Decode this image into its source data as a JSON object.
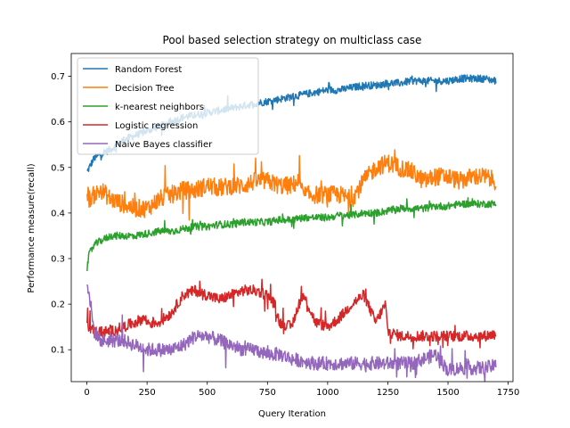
{
  "chart_data": {
    "type": "line",
    "title": "Pool based selection strategy on multiclass case",
    "xlabel": "Query Iteration",
    "ylabel": "Performance measure(recall)",
    "xlim": [
      -65,
      1770
    ],
    "ylim": [
      0.03,
      0.75
    ],
    "xticks": [
      0,
      250,
      500,
      750,
      1000,
      1250,
      1500,
      1750
    ],
    "yticks": [
      0.1,
      0.2,
      0.3,
      0.4,
      0.5,
      0.6,
      0.7
    ],
    "grid": false,
    "legend_position": "top-left",
    "x_range": [
      1,
      1700
    ],
    "series": [
      {
        "name": "Random Forest",
        "color": "#1f77b4",
        "noise": 0.008,
        "x": [
          1,
          10,
          30,
          60,
          100,
          150,
          200,
          250,
          300,
          350,
          400,
          450,
          500,
          550,
          600,
          650,
          700,
          750,
          800,
          850,
          900,
          950,
          1000,
          1050,
          1100,
          1150,
          1200,
          1250,
          1300,
          1350,
          1400,
          1450,
          1500,
          1550,
          1600,
          1650,
          1700
        ],
        "y": [
          0.49,
          0.5,
          0.52,
          0.53,
          0.54,
          0.56,
          0.57,
          0.58,
          0.59,
          0.6,
          0.61,
          0.615,
          0.62,
          0.625,
          0.63,
          0.635,
          0.64,
          0.645,
          0.65,
          0.655,
          0.66,
          0.665,
          0.67,
          0.67,
          0.675,
          0.68,
          0.68,
          0.685,
          0.685,
          0.69,
          0.69,
          0.69,
          0.69,
          0.695,
          0.695,
          0.695,
          0.69
        ]
      },
      {
        "name": "Decision Tree",
        "color": "#ff7f0e",
        "noise": 0.02,
        "x": [
          1,
          10,
          30,
          60,
          100,
          150,
          200,
          250,
          300,
          350,
          400,
          450,
          500,
          550,
          600,
          650,
          700,
          750,
          800,
          850,
          880,
          900,
          950,
          1000,
          1050,
          1100,
          1150,
          1200,
          1250,
          1300,
          1350,
          1400,
          1450,
          1500,
          1550,
          1600,
          1650,
          1700
        ],
        "y": [
          0.45,
          0.43,
          0.44,
          0.45,
          0.43,
          0.42,
          0.41,
          0.41,
          0.43,
          0.44,
          0.45,
          0.45,
          0.46,
          0.455,
          0.46,
          0.46,
          0.47,
          0.47,
          0.46,
          0.46,
          0.47,
          0.44,
          0.44,
          0.44,
          0.44,
          0.43,
          0.47,
          0.5,
          0.51,
          0.5,
          0.49,
          0.47,
          0.48,
          0.48,
          0.47,
          0.48,
          0.48,
          0.47
        ]
      },
      {
        "name": "k-nearest neighbors",
        "color": "#2ca02c",
        "noise": 0.008,
        "x": [
          1,
          10,
          30,
          60,
          100,
          150,
          200,
          250,
          300,
          350,
          400,
          450,
          500,
          550,
          600,
          650,
          700,
          750,
          800,
          850,
          900,
          950,
          1000,
          1050,
          1100,
          1150,
          1200,
          1250,
          1300,
          1350,
          1400,
          1450,
          1500,
          1550,
          1600,
          1650,
          1700
        ],
        "y": [
          0.28,
          0.31,
          0.33,
          0.34,
          0.35,
          0.35,
          0.35,
          0.355,
          0.36,
          0.36,
          0.365,
          0.37,
          0.37,
          0.375,
          0.375,
          0.38,
          0.38,
          0.38,
          0.385,
          0.385,
          0.39,
          0.39,
          0.39,
          0.395,
          0.395,
          0.4,
          0.4,
          0.405,
          0.41,
          0.41,
          0.41,
          0.415,
          0.415,
          0.42,
          0.42,
          0.42,
          0.42
        ]
      },
      {
        "name": "Logistic regression",
        "color": "#d62728",
        "noise": 0.012,
        "x": [
          1,
          10,
          30,
          60,
          100,
          150,
          200,
          240,
          250,
          300,
          350,
          400,
          450,
          500,
          550,
          600,
          650,
          700,
          750,
          780,
          800,
          850,
          880,
          900,
          950,
          1000,
          1050,
          1100,
          1150,
          1200,
          1240,
          1250,
          1300,
          1350,
          1400,
          1450,
          1500,
          1550,
          1600,
          1650,
          1700
        ],
        "y": [
          0.15,
          0.15,
          0.14,
          0.14,
          0.14,
          0.15,
          0.16,
          0.17,
          0.16,
          0.16,
          0.18,
          0.22,
          0.23,
          0.22,
          0.21,
          0.22,
          0.23,
          0.23,
          0.22,
          0.2,
          0.16,
          0.15,
          0.2,
          0.22,
          0.16,
          0.15,
          0.17,
          0.2,
          0.22,
          0.16,
          0.2,
          0.14,
          0.13,
          0.13,
          0.13,
          0.13,
          0.13,
          0.13,
          0.13,
          0.13,
          0.135
        ]
      },
      {
        "name": "Naive Bayes classifier",
        "color": "#9467bd",
        "noise": 0.015,
        "x": [
          1,
          10,
          30,
          60,
          100,
          150,
          200,
          250,
          300,
          350,
          400,
          450,
          500,
          550,
          600,
          650,
          700,
          750,
          800,
          850,
          900,
          950,
          1000,
          1050,
          1100,
          1150,
          1200,
          1250,
          1300,
          1350,
          1400,
          1450,
          1500,
          1550,
          1600,
          1650,
          1700
        ],
        "y": [
          0.25,
          0.22,
          0.14,
          0.12,
          0.12,
          0.12,
          0.11,
          0.1,
          0.1,
          0.1,
          0.11,
          0.13,
          0.13,
          0.12,
          0.11,
          0.1,
          0.1,
          0.09,
          0.09,
          0.08,
          0.075,
          0.07,
          0.07,
          0.07,
          0.07,
          0.07,
          0.07,
          0.07,
          0.07,
          0.07,
          0.08,
          0.09,
          0.055,
          0.06,
          0.06,
          0.06,
          0.065
        ]
      }
    ]
  }
}
